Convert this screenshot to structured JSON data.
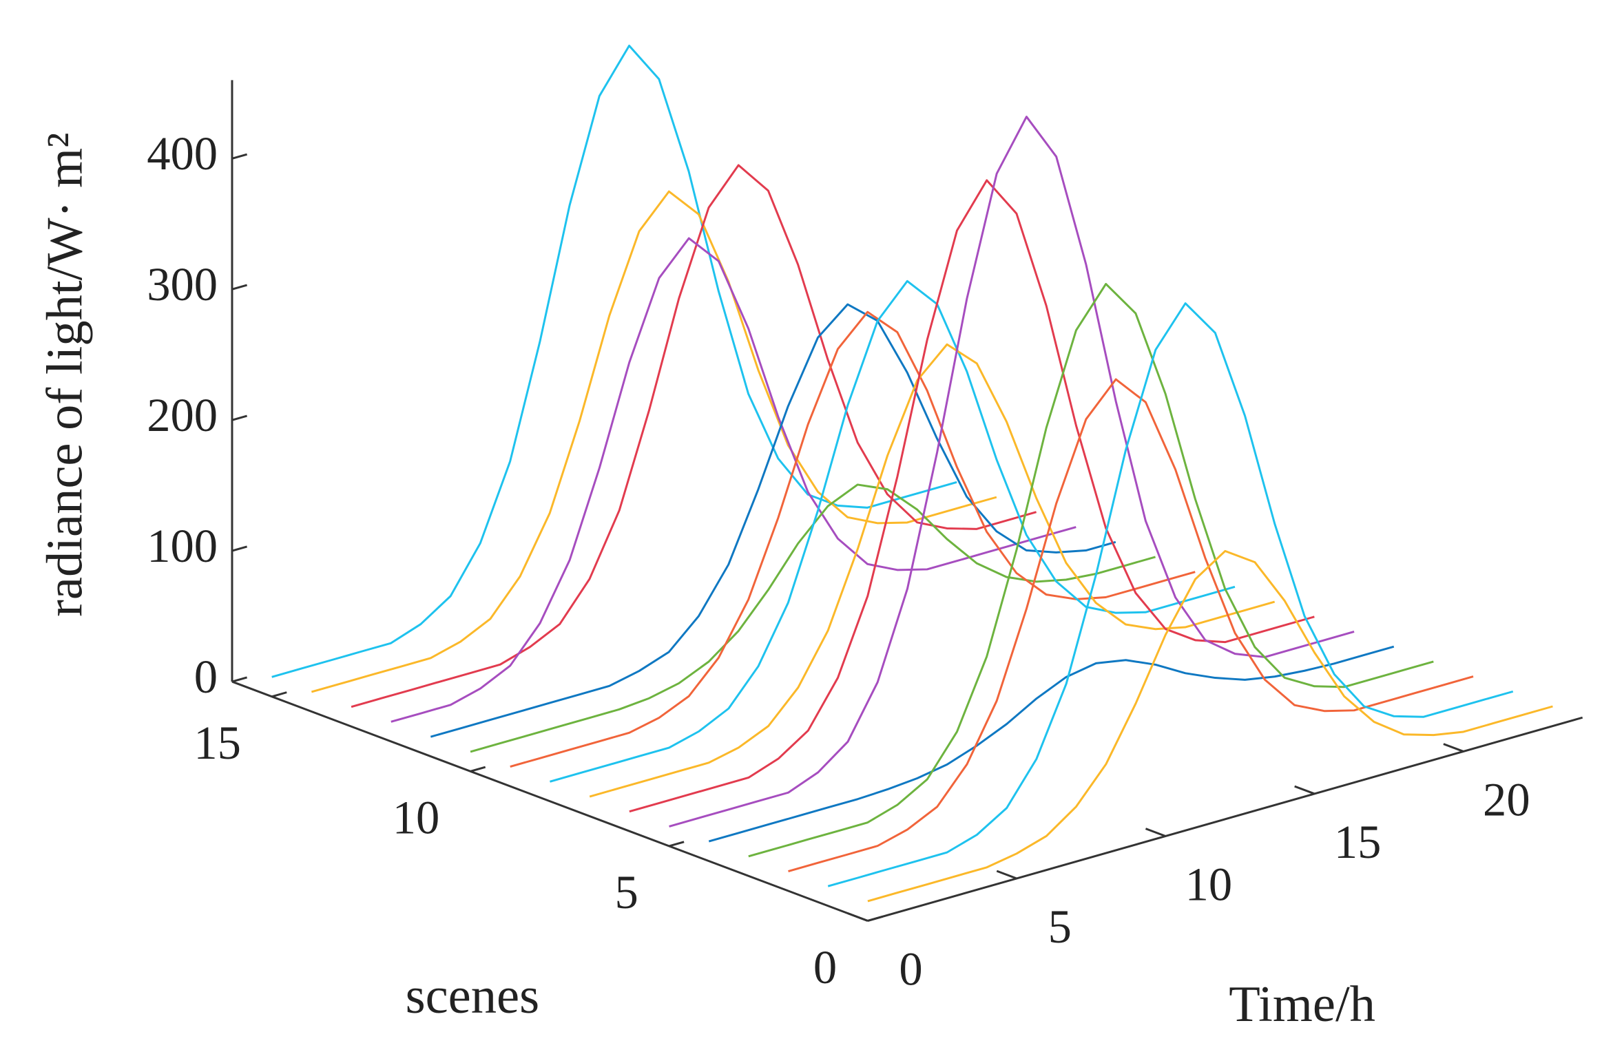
{
  "chart_data": {
    "type": "waterfall",
    "ylabel": "radiance of light/W· m²",
    "xlabel": "Time/h",
    "scene_label": "scenes",
    "x": [
      0,
      1,
      2,
      3,
      4,
      5,
      6,
      7,
      8,
      9,
      10,
      11,
      12,
      13,
      14,
      15,
      16,
      17,
      18,
      19,
      20,
      21,
      22,
      23
    ],
    "xlim": [
      0,
      24
    ],
    "xticks": [
      0,
      5,
      10,
      15,
      20
    ],
    "scene_lim": [
      0,
      16
    ],
    "scene_ticks": [
      0,
      5,
      10,
      15
    ],
    "ylim": [
      0,
      460
    ],
    "yticks": [
      0,
      100,
      200,
      300,
      400
    ],
    "scenes": [
      15,
      14,
      13,
      12,
      11,
      10,
      9,
      8,
      7,
      6,
      5,
      4,
      3,
      2,
      1,
      0
    ],
    "series": [
      {
        "color": "#1ec2ee",
        "values": [
          15,
          15,
          15,
          15,
          15,
          23,
          38,
          72,
          128,
          213,
          311,
          388,
          420,
          388,
          311,
          213,
          128,
          72,
          38,
          23,
          15,
          15,
          15,
          15
        ]
      },
      {
        "color": "#fbb829",
        "values": [
          15,
          15,
          15,
          15,
          15,
          21,
          32,
          58,
          100,
          164,
          238,
          296,
          320,
          296,
          238,
          164,
          100,
          58,
          32,
          21,
          15,
          15,
          15,
          15
        ]
      },
      {
        "color": "#e23b4e",
        "values": [
          15,
          15,
          15,
          15,
          15,
          15,
          22,
          33,
          61,
          107,
          177,
          256,
          319,
          345,
          319,
          256,
          177,
          107,
          61,
          33,
          22,
          15,
          15,
          15
        ]
      },
      {
        "color": "#a64dbf",
        "values": [
          15,
          15,
          15,
          21,
          32,
          58,
          100,
          164,
          238,
          296,
          320,
          296,
          238,
          164,
          100,
          58,
          32,
          21,
          15,
          15,
          15,
          15,
          15,
          15
        ]
      },
      {
        "color": "#0f78c2",
        "values": [
          15,
          15,
          15,
          15,
          15,
          15,
          15,
          20,
          28,
          49,
          82,
          133,
          190,
          236,
          255,
          236,
          190,
          133,
          82,
          49,
          28,
          20,
          15,
          15
        ]
      },
      {
        "color": "#6db33f",
        "values": [
          15,
          15,
          15,
          15,
          15,
          15,
          17,
          22,
          32,
          49,
          74,
          103,
          125,
          135,
          125,
          103,
          74,
          49,
          32,
          22,
          17,
          15,
          15,
          15
        ]
      },
      {
        "color": "#f1643a",
        "values": [
          15,
          15,
          15,
          15,
          15,
          20,
          30,
          53,
          91,
          147,
          212,
          263,
          285,
          263,
          212,
          147,
          91,
          53,
          30,
          20,
          15,
          15,
          15,
          15
        ]
      },
      {
        "color": "#1ec2ee",
        "values": [
          15,
          15,
          15,
          15,
          15,
          21,
          32,
          58,
          100,
          164,
          238,
          296,
          320,
          296,
          238,
          164,
          100,
          58,
          32,
          21,
          15,
          15,
          15,
          15
        ]
      },
      {
        "color": "#fbb829",
        "values": [
          15,
          15,
          15,
          15,
          15,
          20,
          30,
          53,
          90,
          146,
          211,
          262,
          283,
          262,
          211,
          146,
          90,
          53,
          30,
          20,
          15,
          15,
          15,
          15
        ]
      },
      {
        "color": "#e23b4e",
        "values": [
          15,
          15,
          15,
          15,
          15,
          23,
          38,
          72,
          128,
          213,
          311,
          388,
          420,
          388,
          311,
          213,
          128,
          72,
          38,
          23,
          15,
          15,
          15,
          15
        ]
      },
      {
        "color": "#a64dbf",
        "values": [
          15,
          15,
          15,
          15,
          15,
          24,
          41,
          80,
          145,
          243,
          354,
          443,
          480,
          443,
          354,
          243,
          145,
          80,
          41,
          24,
          15,
          15,
          15,
          15
        ]
      },
      {
        "color": "#0f78c2",
        "values": [
          15,
          15,
          15,
          15,
          15,
          15,
          16,
          18,
          22,
          30,
          40,
          53,
          63,
          67,
          63,
          53,
          40,
          30,
          22,
          18,
          16,
          15,
          15,
          15
        ]
      },
      {
        "color": "#6db33f",
        "values": [
          15,
          15,
          15,
          15,
          15,
          22,
          35,
          65,
          116,
          191,
          278,
          346,
          375,
          346,
          278,
          191,
          116,
          65,
          35,
          22,
          15,
          15,
          15,
          15
        ]
      },
      {
        "color": "#f1643a",
        "values": [
          15,
          15,
          15,
          15,
          21,
          32,
          58,
          100,
          164,
          238,
          296,
          320,
          296,
          238,
          164,
          100,
          58,
          32,
          21,
          15,
          15,
          15,
          15,
          15
        ]
      },
      {
        "color": "#1ec2ee",
        "values": [
          15,
          15,
          15,
          15,
          15,
          22,
          36,
          67,
          118,
          195,
          284,
          354,
          383,
          354,
          284,
          195,
          118,
          67,
          36,
          22,
          15,
          15,
          15,
          15
        ]
      },
      {
        "color": "#fbb829",
        "values": [
          15,
          15,
          15,
          15,
          15,
          19,
          26,
          42,
          68,
          108,
          154,
          190,
          205,
          190,
          154,
          108,
          68,
          42,
          26,
          19,
          15,
          15,
          15,
          15
        ]
      }
    ]
  }
}
